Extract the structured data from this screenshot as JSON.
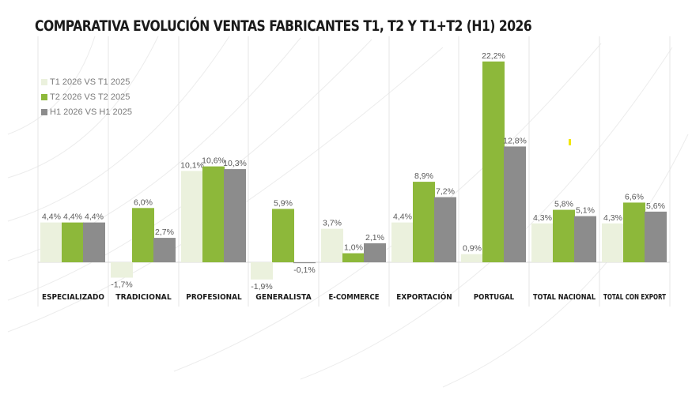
{
  "chart_data": {
    "type": "bar",
    "title": "COMPARATIVA EVOLUCIÓN VENTAS FABRICANTES T1, T2 Y T1+T2 (H1) 2026",
    "categories": [
      "ESPECIALIZADO",
      "TRADICIONAL",
      "PROFESIONAL",
      "GENERALISTA",
      "E-COMMERCE",
      "EXPORTACIÓN",
      "PORTUGAL",
      "TOTAL NACIONAL",
      "TOTAL CON EXPORT"
    ],
    "series": [
      {
        "name": "T1 2026 VS T1 2025",
        "color": "#ebf1dd",
        "values": [
          4.4,
          -1.7,
          10.1,
          -1.9,
          3.7,
          4.4,
          0.9,
          4.3,
          4.3
        ],
        "labels": [
          "4,4%",
          "-1,7%",
          "10,1%",
          "-1,9%",
          "3,7%",
          "4,4%",
          "0,9%",
          "4,3%",
          "4,3%"
        ]
      },
      {
        "name": "T2 2026 VS T2 2025",
        "color": "#8db83a",
        "values": [
          4.4,
          6.0,
          10.6,
          5.9,
          1.0,
          8.9,
          22.2,
          5.8,
          6.6
        ],
        "labels": [
          "4,4%",
          "6,0%",
          "10,6%",
          "5,9%",
          "1,0%",
          "8,9%",
          "22,2%",
          "5,8%",
          "6,6%"
        ]
      },
      {
        "name": "H1 2026 VS H1 2025",
        "color": "#8c8c8c",
        "values": [
          4.4,
          2.7,
          10.3,
          -0.1,
          2.1,
          7.2,
          12.8,
          5.1,
          5.6
        ],
        "labels": [
          "4,4%",
          "2,7%",
          "10,3%",
          "-0,1%",
          "2,1%",
          "7,2%",
          "12,8%",
          "5,1%",
          "5,6%"
        ]
      }
    ],
    "value_format": "percent with comma decimal",
    "legend_position": "top-left",
    "ylim": [
      -3,
      24
    ],
    "grid": false,
    "background_decoration": "faint curved lines",
    "colors": {
      "text": "#595959",
      "title": "#1a1a1a",
      "accent_mark": "#f2e600"
    }
  }
}
